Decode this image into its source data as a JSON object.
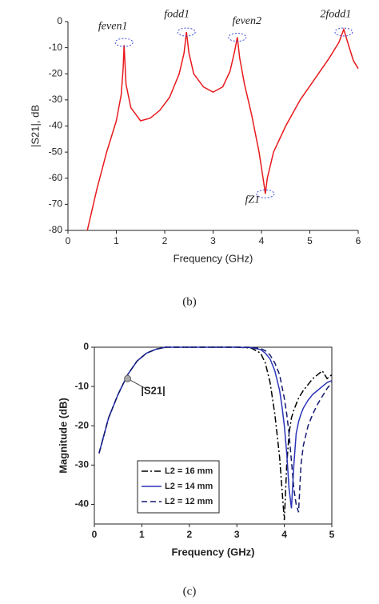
{
  "chart_data": [
    {
      "type": "line",
      "caption": "(b)",
      "xlabel": "Frequency (GHz)",
      "ylabel": "|S21|, dB",
      "xlim": [
        0,
        6
      ],
      "ylim": [
        -80,
        0
      ],
      "xticks": [
        0,
        1,
        2,
        3,
        4,
        5,
        6
      ],
      "yticks": [
        0,
        -10,
        -20,
        -30,
        -40,
        -50,
        -60,
        -70,
        -80
      ],
      "x": [
        0.4,
        0.6,
        0.8,
        1.0,
        1.1,
        1.14,
        1.16,
        1.2,
        1.3,
        1.5,
        1.7,
        1.9,
        2.1,
        2.3,
        2.4,
        2.45,
        2.5,
        2.6,
        2.8,
        3.0,
        3.2,
        3.35,
        3.45,
        3.5,
        3.55,
        3.65,
        3.8,
        3.95,
        4.05,
        4.08,
        4.12,
        4.25,
        4.5,
        4.8,
        5.1,
        5.4,
        5.6,
        5.7,
        5.8,
        5.9,
        6.0
      ],
      "series": [
        {
          "name": "|S21|",
          "color": "#e8191c",
          "dash": "solid",
          "values": [
            -80,
            -64,
            -50,
            -38,
            -28,
            -18,
            -9,
            -24,
            -33,
            -38,
            -37,
            -34,
            -29,
            -20,
            -12,
            -4,
            -12,
            -20,
            -25,
            -27,
            -25,
            -19,
            -11,
            -6,
            -14,
            -24,
            -36,
            -50,
            -62,
            -66,
            -60,
            -50,
            -40,
            -30,
            -22,
            -14,
            -8,
            -3,
            -9,
            -15,
            -18
          ]
        }
      ],
      "annotations": [
        {
          "text": "feven1",
          "x": 1.16,
          "y": -8
        },
        {
          "text": "fodd1",
          "x": 2.45,
          "y": -4
        },
        {
          "text": "feven2",
          "x": 3.5,
          "y": -6
        },
        {
          "text": "2fodd1",
          "x": 5.7,
          "y": -4
        },
        {
          "text": "fZ1",
          "x": 4.08,
          "y": -66
        }
      ],
      "frame": false,
      "legend": false
    },
    {
      "type": "line",
      "caption": "(c)",
      "xlabel": "Frequency (GHz)",
      "ylabel": "Magnitude (dB)",
      "xlim": [
        0,
        5
      ],
      "ylim": [
        -45,
        0
      ],
      "xticks": [
        0,
        1,
        2,
        3,
        4,
        5
      ],
      "yticks": [
        0,
        -10,
        -20,
        -30,
        -40
      ],
      "x": [
        0.1,
        0.3,
        0.5,
        0.7,
        0.9,
        1.1,
        1.3,
        1.5,
        2.0,
        2.5,
        3.0,
        3.3,
        3.5,
        3.6,
        3.7,
        3.8,
        3.9,
        3.95,
        4.0,
        4.05,
        4.1,
        4.15,
        4.2,
        4.25,
        4.3,
        4.35,
        4.4,
        4.5,
        4.6,
        4.7,
        4.8,
        4.9,
        5.0
      ],
      "series": [
        {
          "name": "L2 = 16 mm",
          "color": "#000000",
          "dash": "dashdot",
          "values": [
            -27,
            -18,
            -12,
            -7,
            -3.5,
            -1.5,
            -0.5,
            0,
            0,
            0,
            0,
            -0.2,
            -1.5,
            -4,
            -9,
            -17,
            -28,
            -36,
            -44,
            -30,
            -22,
            -18,
            -16,
            -14.5,
            -13,
            -12,
            -11,
            -9.5,
            -8,
            -7,
            -6,
            -8,
            -7
          ]
        },
        {
          "name": "L2 = 14 mm",
          "color": "#2b35b8",
          "dash": "solid",
          "values": [
            -27,
            -18,
            -12,
            -7,
            -3.5,
            -1.5,
            -0.5,
            0,
            0,
            0,
            0,
            -0.1,
            -0.6,
            -1.5,
            -3,
            -6,
            -11,
            -15,
            -20,
            -27,
            -36,
            -41,
            -30,
            -22,
            -19,
            -17,
            -15.5,
            -13.5,
            -12,
            -11,
            -10,
            -9,
            -8.5
          ]
        },
        {
          "name": "L2 = 12 mm",
          "color": "#141b6e",
          "dash": "dashed",
          "values": [
            -27,
            -18,
            -12,
            -7,
            -3.5,
            -1.5,
            -0.5,
            0,
            0,
            0,
            0,
            0,
            -0.3,
            -0.9,
            -2,
            -4,
            -7,
            -10,
            -13,
            -17,
            -22,
            -29,
            -36,
            -40,
            -42,
            -30,
            -25,
            -20,
            -17,
            -14.5,
            -12.5,
            -10.5,
            -9
          ]
        }
      ],
      "annotations": [
        {
          "text": "|S21|",
          "x": 0.7,
          "y": -8
        }
      ],
      "frame": true,
      "legend": "lower left"
    }
  ]
}
